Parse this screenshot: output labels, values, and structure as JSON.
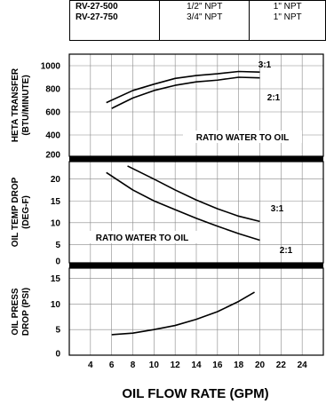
{
  "spec_table": {
    "rows": [
      {
        "model": "RV-27-500",
        "oil_port": "1/2\" NPT",
        "water_port": "1\" NPT"
      },
      {
        "model": "RV-27-750",
        "oil_port": "3/4\" NPT",
        "water_port": "1\" NPT"
      }
    ]
  },
  "chart_data": [
    {
      "type": "line",
      "ylabel": "HETA TRANSFER (BTU/MINUTE)",
      "ylim": [
        200,
        1100
      ],
      "yticks": [
        200,
        400,
        600,
        800,
        1000
      ],
      "annotation": "RATIO WATER TO OIL",
      "grid": true,
      "series": [
        {
          "name": "3:1",
          "x": [
            5.5,
            8,
            10,
            12,
            14,
            16,
            18,
            20
          ],
          "y": [
            680,
            785,
            840,
            890,
            915,
            930,
            950,
            945
          ]
        },
        {
          "name": "2:1",
          "x": [
            6,
            8,
            10,
            12,
            14,
            16,
            18,
            20
          ],
          "y": [
            630,
            720,
            785,
            830,
            860,
            875,
            900,
            895
          ]
        }
      ]
    },
    {
      "type": "line",
      "ylabel": "OIL TEMP DROP (DEG-F)",
      "ylim": [
        0,
        24
      ],
      "yticks": [
        0,
        5,
        10,
        15,
        20
      ],
      "annotation": "RATIO WATER TO OIL",
      "grid": true,
      "series": [
        {
          "name": "3:1",
          "x": [
            7.5,
            10,
            12,
            14,
            16,
            18,
            20
          ],
          "y": [
            23,
            20,
            17.5,
            15.2,
            13.2,
            11.5,
            10.3
          ]
        },
        {
          "name": "2:1",
          "x": [
            5.5,
            8,
            10,
            12,
            14,
            16,
            18,
            20
          ],
          "y": [
            21.5,
            17.5,
            15,
            13,
            11,
            9.2,
            7.5,
            6
          ]
        }
      ]
    },
    {
      "type": "line",
      "ylabel": "OIL PRESS DROP (PSI)",
      "xlabel": "OIL FLOW RATE (GPM)",
      "xticks": [
        4,
        6,
        8,
        10,
        12,
        14,
        16,
        18,
        20,
        22,
        24
      ],
      "ylim": [
        0,
        17
      ],
      "yticks": [
        0,
        5,
        10,
        15
      ],
      "grid": true,
      "series": [
        {
          "name": "",
          "x": [
            6,
            8,
            10,
            12,
            14,
            16,
            18,
            19.5
          ],
          "y": [
            4,
            4.3,
            5,
            5.8,
            7,
            8.5,
            10.5,
            12.3
          ]
        }
      ]
    }
  ]
}
